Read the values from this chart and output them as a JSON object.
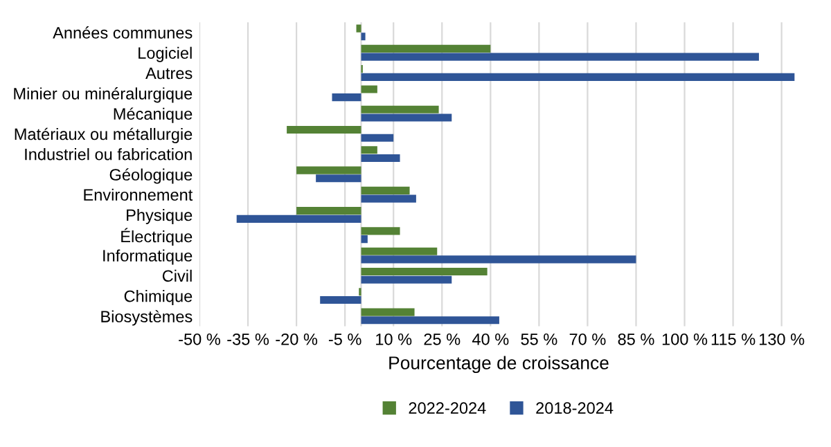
{
  "chart_data": {
    "type": "bar",
    "orientation": "horizontal",
    "xlabel": "Pourcentage de croissance",
    "categories": [
      "Années communes",
      "Logiciel",
      "Autres",
      "Minier ou minéralurgique",
      "Mécanique",
      "Matériaux ou métallurgie",
      "Industriel ou fabrication",
      "Géologique",
      "Environnement",
      "Physique",
      "Électrique",
      "Informatique",
      "Civil",
      "Chimique",
      "Biosystèmes"
    ],
    "series": [
      {
        "name": "2022-2024",
        "color": "#548235",
        "values": [
          -1.5,
          40,
          0.5,
          5,
          24,
          -23,
          5,
          -20,
          15,
          -20,
          12,
          23.5,
          39,
          -0.7,
          16.5
        ]
      },
      {
        "name": "2018-2024",
        "color": "#2f5597",
        "values": [
          1.3,
          123,
          134,
          -9,
          28,
          10,
          12,
          -14,
          17,
          -38.5,
          2,
          85,
          28,
          -12.7,
          42.7
        ]
      }
    ],
    "xlim": [
      -50,
      135
    ],
    "xticks": [
      {
        "value": -50,
        "label": "-50 %"
      },
      {
        "value": -35,
        "label": "-35 %"
      },
      {
        "value": -20,
        "label": "-20 %"
      },
      {
        "value": -5,
        "label": "-5 %"
      },
      {
        "value": 10,
        "label": "10 %"
      },
      {
        "value": 25,
        "label": "25 %"
      },
      {
        "value": 40,
        "label": "40 %"
      },
      {
        "value": 55,
        "label": "55 %"
      },
      {
        "value": 70,
        "label": "70 %"
      },
      {
        "value": 85,
        "label": "85 %"
      },
      {
        "value": 100,
        "label": "100 %"
      },
      {
        "value": 115,
        "label": "115 %"
      },
      {
        "value": 130,
        "label": "130 %"
      }
    ],
    "grid": "x",
    "legend": "bottom"
  }
}
